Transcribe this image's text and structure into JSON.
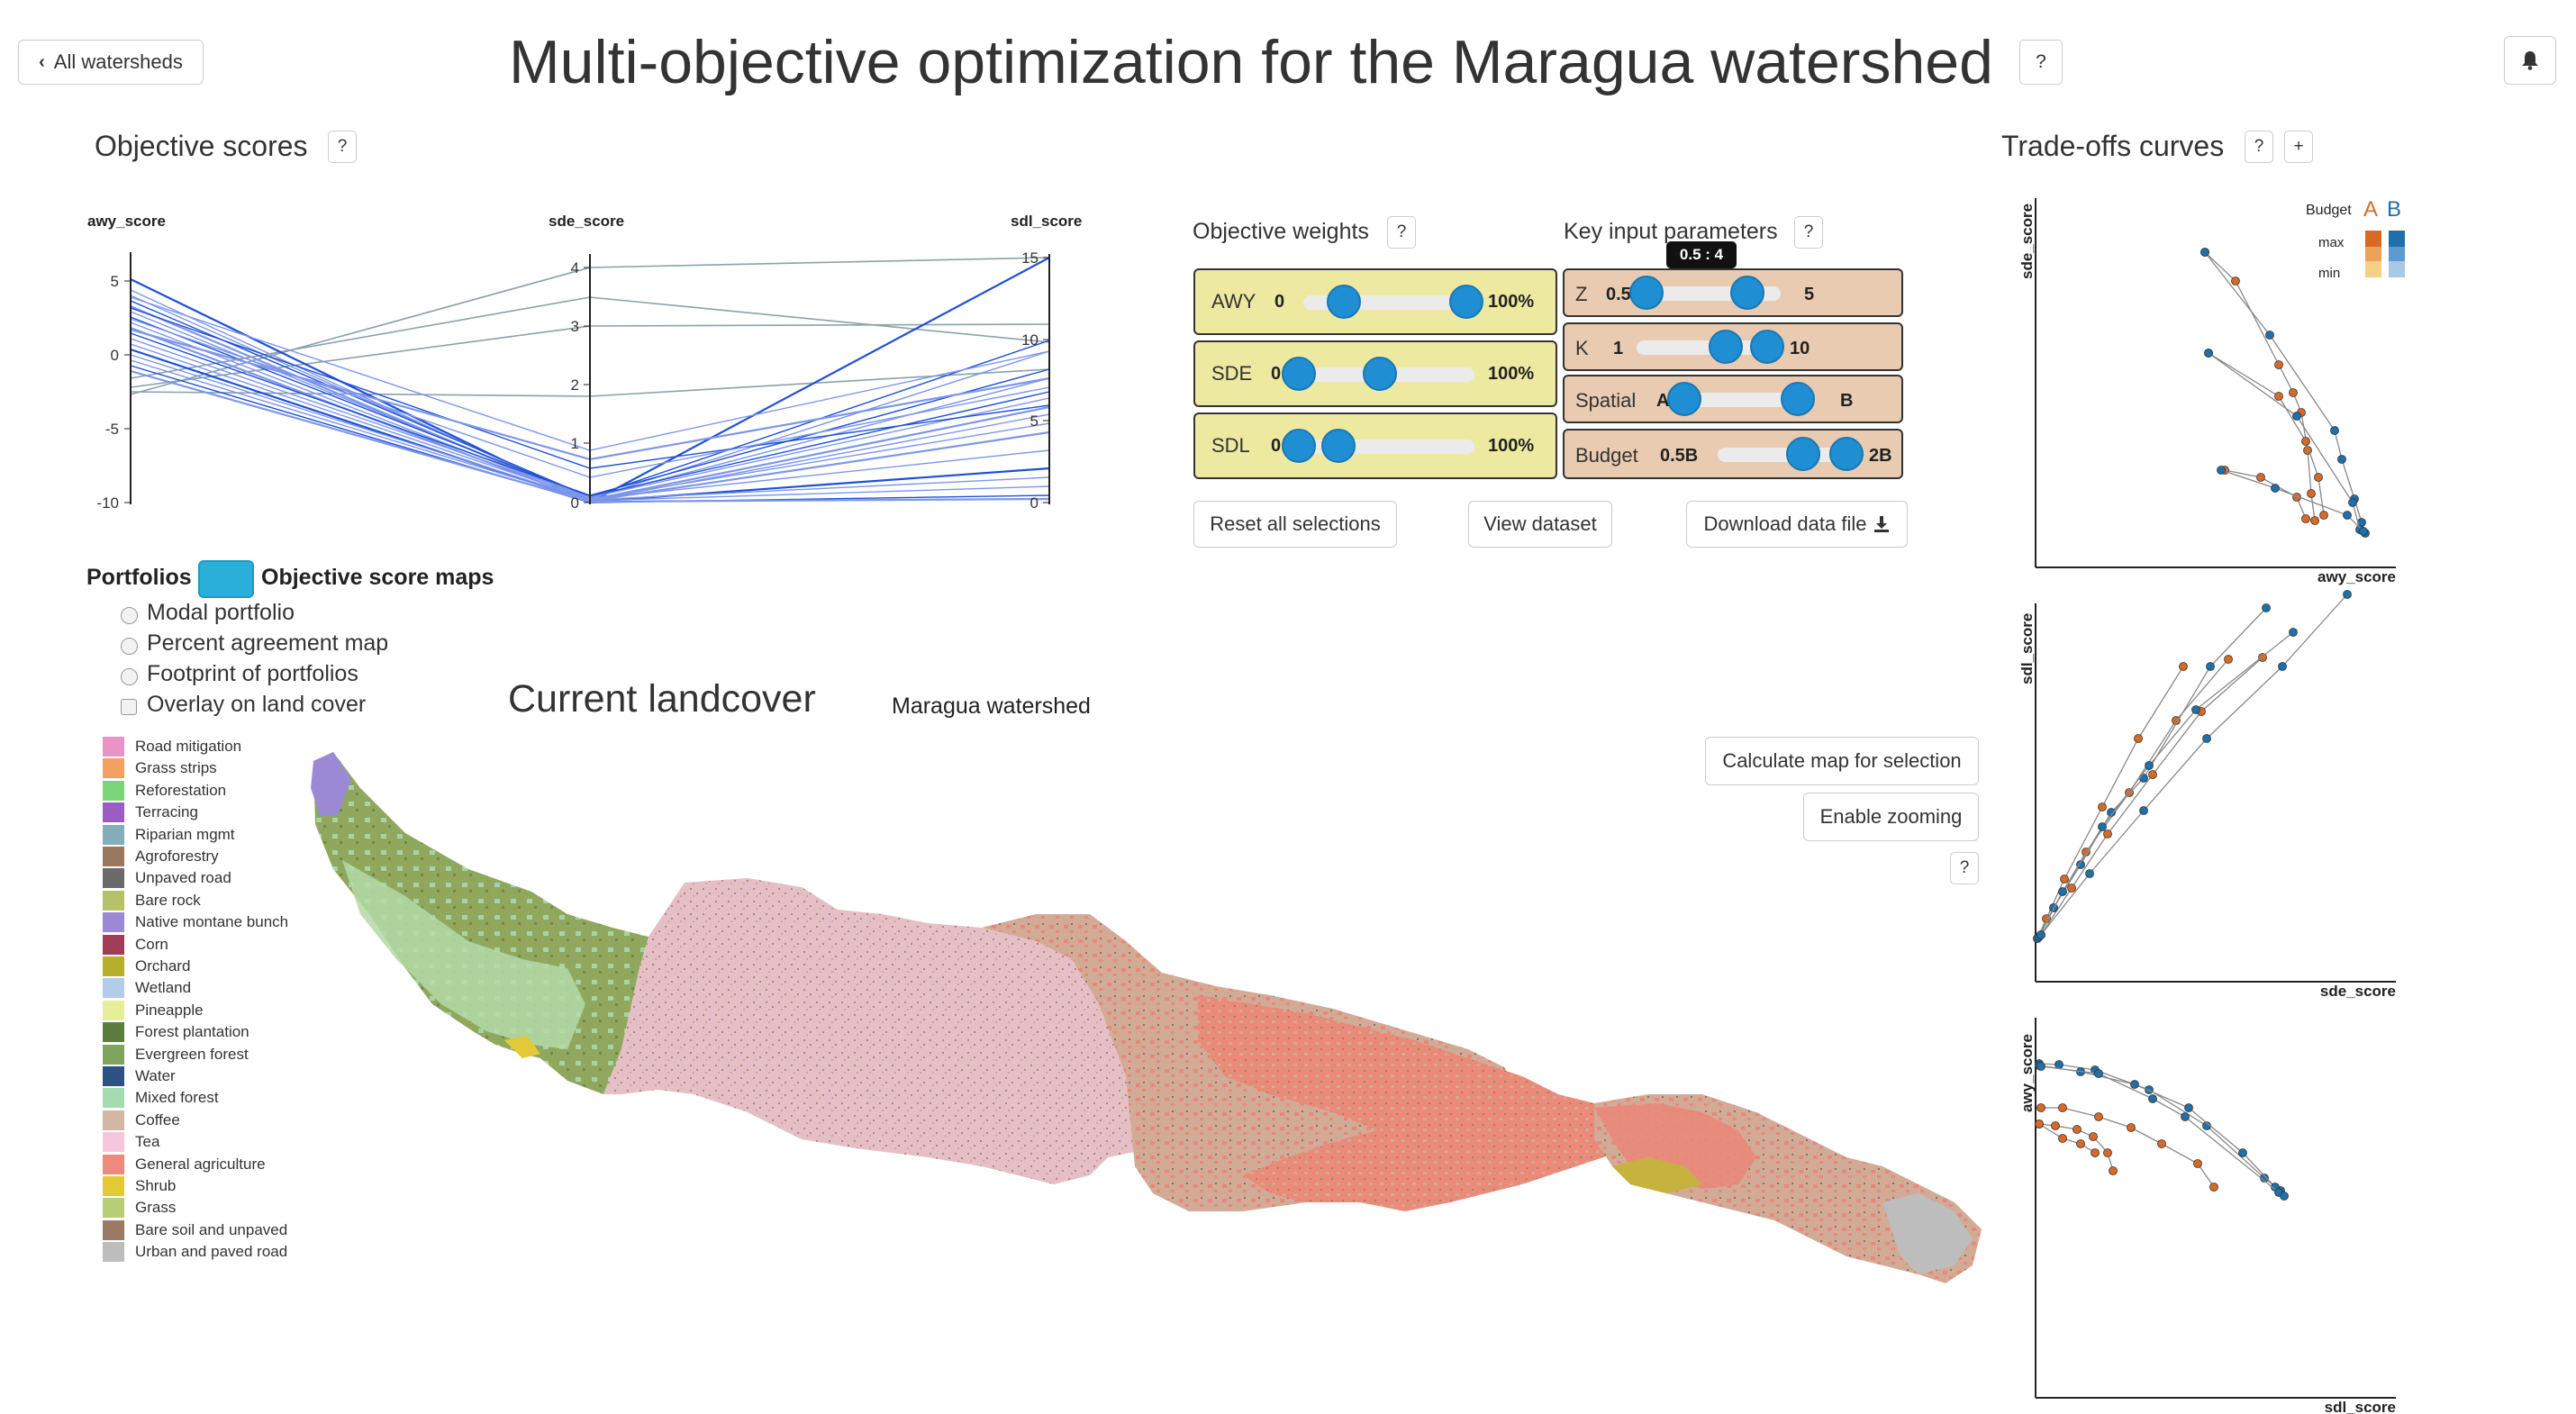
{
  "header": {
    "back_label": "All watersheds",
    "title": "Multi-objective optimization for the Maragua watershed",
    "help_label": "?"
  },
  "objective_scores": {
    "title": "Objective scores",
    "help": "?",
    "axes": [
      {
        "label": "awy_score",
        "ticks": [
          "5",
          "0",
          "-5",
          "-10"
        ]
      },
      {
        "label": "sde_score",
        "ticks": [
          "4",
          "3",
          "2",
          "1",
          "0"
        ]
      },
      {
        "label": "sdl_score",
        "ticks": [
          "15",
          "10",
          "5",
          "0"
        ]
      }
    ]
  },
  "objective_weights": {
    "title": "Objective weights",
    "help": "?",
    "rows": [
      {
        "label": "AWY",
        "min": "0",
        "max": "100%",
        "range": [
          25,
          100
        ]
      },
      {
        "label": "SDE",
        "min": "0",
        "max": "100%",
        "range": [
          0,
          50
        ]
      },
      {
        "label": "SDL",
        "min": "0",
        "max": "100%",
        "range": [
          0,
          25
        ]
      }
    ]
  },
  "key_params": {
    "title": "Key input parameters",
    "help": "?",
    "tooltip": "0.5 : 4",
    "rows": [
      {
        "label": "Z",
        "min": "0.5",
        "max": "5"
      },
      {
        "label": "K",
        "min": "1",
        "max": "10"
      },
      {
        "label": "Spatial",
        "min": "A",
        "max": "B"
      },
      {
        "label": "Budget",
        "min": "0.5B",
        "max": "2B"
      }
    ]
  },
  "actions": {
    "reset": "Reset all selections",
    "view": "View dataset",
    "download": "Download data file"
  },
  "maps": {
    "portfolios_label": "Portfolios",
    "scores_label": "Objective score maps",
    "options": [
      "Modal portfolio",
      "Percent agreement map",
      "Footprint of portfolios"
    ],
    "overlay": "Overlay on land cover",
    "map_title": "Current landcover",
    "watershed_name": "Maragua watershed",
    "calc_button": "Calculate map for selection",
    "zoom_button": "Enable zooming",
    "help": "?"
  },
  "legend": [
    {
      "label": "Road mitigation",
      "color": "#e994c6"
    },
    {
      "label": "Grass strips",
      "color": "#f3a060"
    },
    {
      "label": "Reforestation",
      "color": "#7bd67b"
    },
    {
      "label": "Terracing",
      "color": "#9a5ec2"
    },
    {
      "label": "Riparian mgmt",
      "color": "#85aebc"
    },
    {
      "label": "Agroforestry",
      "color": "#9a785f"
    },
    {
      "label": "Unpaved road",
      "color": "#6a6a6a"
    },
    {
      "label": "Bare rock",
      "color": "#b5c268"
    },
    {
      "label": "Native montane bunch",
      "color": "#9c89d6"
    },
    {
      "label": "Corn",
      "color": "#a23b55"
    },
    {
      "label": "Orchard",
      "color": "#b8b02c"
    },
    {
      "label": "Wetland",
      "color": "#b2cce9"
    },
    {
      "label": "Pineapple",
      "color": "#e7ee9a"
    },
    {
      "label": "Forest plantation",
      "color": "#5b7e3f"
    },
    {
      "label": "Evergreen forest",
      "color": "#7fa45f"
    },
    {
      "label": "Water",
      "color": "#2f5182"
    },
    {
      "label": "Mixed forest",
      "color": "#a4dcb0"
    },
    {
      "label": "Coffee",
      "color": "#d3b6a3"
    },
    {
      "label": "Tea",
      "color": "#f5c6dc"
    },
    {
      "label": "General agriculture",
      "color": "#ee8a7c"
    },
    {
      "label": "Shrub",
      "color": "#e2c935"
    },
    {
      "label": "Grass",
      "color": "#b8cd76"
    },
    {
      "label": "Bare soil and unpaved",
      "color": "#9b7a66"
    },
    {
      "label": "Urban and paved road",
      "color": "#bdbdbd"
    }
  ],
  "tradeoffs": {
    "title": "Trade-offs curves",
    "help": "?",
    "add": "+",
    "legend_budget": "Budget",
    "legend_a": "A",
    "legend_b": "B",
    "legend_max": "max",
    "legend_min": "min",
    "colors": {
      "A": "#d86a25",
      "B": "#1f6faa"
    },
    "plots": [
      {
        "xlabel": "awy_score",
        "ylabel": "sde_score"
      },
      {
        "xlabel": "sde_score",
        "ylabel": "sdl_score"
      },
      {
        "xlabel": "sdl_score",
        "ylabel": "awy_score"
      }
    ]
  }
}
